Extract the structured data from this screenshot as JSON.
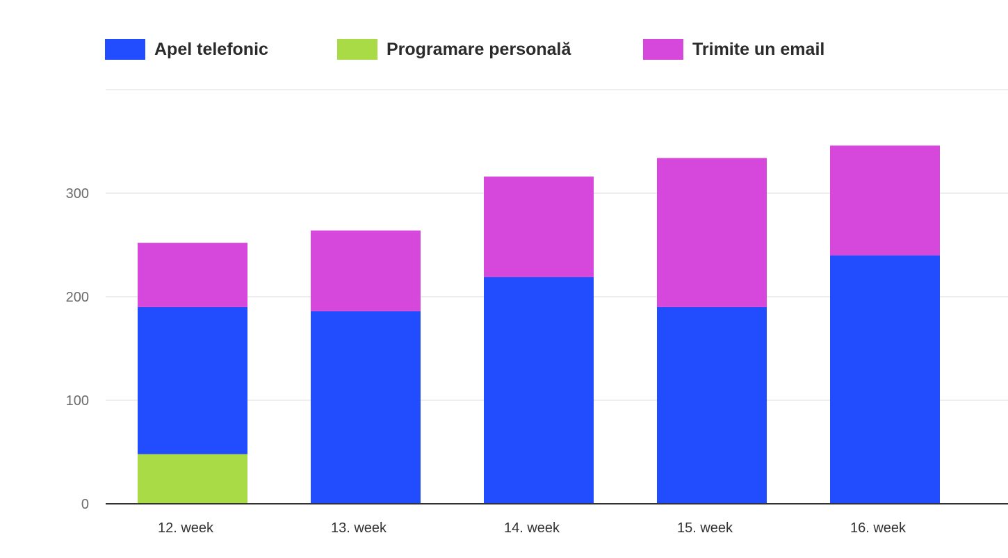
{
  "chart_data": {
    "type": "bar",
    "stacked": true,
    "title": "",
    "xlabel": "",
    "ylabel": "",
    "categories": [
      "12. week",
      "13. week",
      "14. week",
      "15. week",
      "16. week"
    ],
    "series": [
      {
        "name": "Programare personală",
        "color": "#a8db45",
        "values": [
          48,
          0,
          0,
          0,
          0
        ]
      },
      {
        "name": "Apel telefonic",
        "color": "#214dff",
        "values": [
          142,
          186,
          219,
          190,
          240
        ]
      },
      {
        "name": "Trimite un email",
        "color": "#d647db",
        "values": [
          62,
          78,
          97,
          144,
          106
        ]
      }
    ],
    "legend_order": [
      "Apel telefonic",
      "Programare personală",
      "Trimite un email"
    ],
    "legend_position": "top-left",
    "ylim": [
      0,
      400
    ],
    "yticks": [
      0,
      100,
      200,
      300
    ],
    "grid": true,
    "colors": {
      "grid": "#e8e8e8",
      "axis": "#333333"
    }
  }
}
